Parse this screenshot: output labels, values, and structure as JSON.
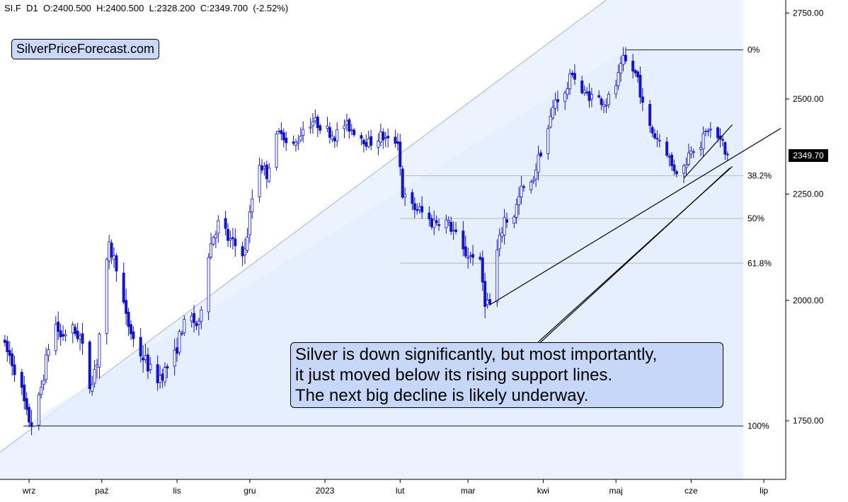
{
  "header": {
    "symbol": "SI.F",
    "timeframe": "D1",
    "open": "O:2400.500",
    "high": "H:2400.500",
    "low": "L:2328.200",
    "close": "C:2349.700",
    "change": "(-2.52%)"
  },
  "logo_text": "SilverPriceForecast.com",
  "annotation": {
    "line1": "Silver is down significantly, but most importantly,",
    "line2": "it just moved below its rising support lines.",
    "line3": "The next big decline is likely underway."
  },
  "last_price_label": "2349.70",
  "colors": {
    "candle": "#1414c8",
    "fib_fill": "#e3eefc",
    "triangle_fill": "#eaf3ff",
    "fib_line": "#b8b8b8"
  },
  "chart_data": {
    "type": "candlestick",
    "title": "",
    "xlabel": "",
    "ylabel": "",
    "y_scale": "log",
    "ylim": [
      1640,
      2790
    ],
    "yticks": [
      {
        "label": "1750.00",
        "value": 1750
      },
      {
        "label": "2000.00",
        "value": 2000
      },
      {
        "label": "2250.00",
        "value": 2250
      },
      {
        "label": "2500.00",
        "value": 2500
      },
      {
        "label": "2750.00",
        "value": 2750
      }
    ],
    "xticks": [
      {
        "label": "wrz",
        "date": "2022-09-01"
      },
      {
        "label": "paź",
        "date": "2022-10-01"
      },
      {
        "label": "lis",
        "date": "2022-11-01"
      },
      {
        "label": "gru",
        "date": "2022-12-01"
      },
      {
        "label": "2023",
        "date": "2023-01-01"
      },
      {
        "label": "lut",
        "date": "2023-02-01"
      },
      {
        "label": "mar",
        "date": "2023-03-01"
      },
      {
        "label": "kwi",
        "date": "2023-04-01"
      },
      {
        "label": "maj",
        "date": "2023-05-01"
      },
      {
        "label": "cze",
        "date": "2023-06-01"
      },
      {
        "label": "lip",
        "date": "2023-07-01"
      }
    ],
    "xlim": [
      "2022-08-20",
      "2023-07-10"
    ],
    "fibonacci": {
      "high": 2640,
      "low": 1740,
      "levels": [
        {
          "label": "0%",
          "value": 2640
        },
        {
          "label": "38.2%",
          "value": 2296
        },
        {
          "label": "50%",
          "value": 2190
        },
        {
          "label": "61.8%",
          "value": 2084
        },
        {
          "label": "100%",
          "value": 1740
        }
      ]
    },
    "price_path": [
      [
        "2022-08-20",
        1920
      ],
      [
        "2022-08-25",
        1880
      ],
      [
        "2022-08-29",
        1830
      ],
      [
        "2022-09-01",
        1760
      ],
      [
        "2022-09-03",
        1745
      ],
      [
        "2022-09-06",
        1790
      ],
      [
        "2022-09-09",
        1870
      ],
      [
        "2022-09-12",
        1960
      ],
      [
        "2022-09-15",
        1920
      ],
      [
        "2022-09-19",
        1940
      ],
      [
        "2022-09-23",
        1920
      ],
      [
        "2022-09-27",
        1820
      ],
      [
        "2022-09-30",
        1870
      ],
      [
        "2022-10-03",
        2040
      ],
      [
        "2022-10-05",
        2120
      ],
      [
        "2022-10-08",
        2080
      ],
      [
        "2022-10-12",
        1960
      ],
      [
        "2022-10-16",
        1900
      ],
      [
        "2022-10-20",
        1870
      ],
      [
        "2022-10-24",
        1830
      ],
      [
        "2022-10-28",
        1850
      ],
      [
        "2022-11-01",
        1880
      ],
      [
        "2022-11-04",
        1940
      ],
      [
        "2022-11-08",
        1960
      ],
      [
        "2022-11-11",
        1940
      ],
      [
        "2022-11-14",
        2090
      ],
      [
        "2022-11-17",
        2150
      ],
      [
        "2022-11-20",
        2190
      ],
      [
        "2022-11-23",
        2140
      ],
      [
        "2022-11-27",
        2120
      ],
      [
        "2022-11-30",
        2110
      ],
      [
        "2022-12-03",
        2240
      ],
      [
        "2022-12-06",
        2330
      ],
      [
        "2022-12-09",
        2300
      ],
      [
        "2022-12-12",
        2380
      ],
      [
        "2022-12-15",
        2420
      ],
      [
        "2022-12-18",
        2360
      ],
      [
        "2022-12-21",
        2380
      ],
      [
        "2022-12-24",
        2420
      ],
      [
        "2022-12-28",
        2440
      ],
      [
        "2023-01-02",
        2420
      ],
      [
        "2023-01-06",
        2400
      ],
      [
        "2023-01-10",
        2430
      ],
      [
        "2023-01-15",
        2410
      ],
      [
        "2023-01-20",
        2380
      ],
      [
        "2023-01-25",
        2400
      ],
      [
        "2023-01-29",
        2380
      ],
      [
        "2023-02-01",
        2390
      ],
      [
        "2023-02-03",
        2250
      ],
      [
        "2023-02-06",
        2220
      ],
      [
        "2023-02-10",
        2210
      ],
      [
        "2023-02-15",
        2180
      ],
      [
        "2023-02-20",
        2190
      ],
      [
        "2023-02-24",
        2160
      ],
      [
        "2023-02-28",
        2110
      ],
      [
        "2023-03-03",
        2100
      ],
      [
        "2023-03-06",
        2120
      ],
      [
        "2023-03-09",
        2000
      ],
      [
        "2023-03-11",
        1990
      ],
      [
        "2023-03-14",
        2110
      ],
      [
        "2023-03-17",
        2190
      ],
      [
        "2023-03-20",
        2180
      ],
      [
        "2023-03-24",
        2260
      ],
      [
        "2023-03-28",
        2270
      ],
      [
        "2023-03-31",
        2340
      ],
      [
        "2023-04-04",
        2420
      ],
      [
        "2023-04-07",
        2500
      ],
      [
        "2023-04-11",
        2510
      ],
      [
        "2023-04-14",
        2580
      ],
      [
        "2023-04-17",
        2520
      ],
      [
        "2023-04-21",
        2510
      ],
      [
        "2023-04-25",
        2500
      ],
      [
        "2023-04-28",
        2490
      ],
      [
        "2023-05-02",
        2540
      ],
      [
        "2023-05-05",
        2610
      ],
      [
        "2023-05-08",
        2590
      ],
      [
        "2023-05-11",
        2560
      ],
      [
        "2023-05-14",
        2440
      ],
      [
        "2023-05-18",
        2400
      ],
      [
        "2023-05-22",
        2380
      ],
      [
        "2023-05-25",
        2320
      ],
      [
        "2023-05-29",
        2300
      ],
      [
        "2023-06-02",
        2370
      ],
      [
        "2023-06-06",
        2380
      ],
      [
        "2023-06-09",
        2420
      ],
      [
        "2023-06-12",
        2400
      ],
      [
        "2023-06-15",
        2380
      ],
      [
        "2023-06-16",
        2350
      ]
    ],
    "last_price": 2349.7,
    "support_lines": [
      {
        "from": [
          "2023-03-10",
          1990
        ],
        "to": [
          "2023-07-08",
          2420
        ]
      },
      {
        "from": [
          "2023-05-29",
          2290
        ],
        "to": [
          "2023-06-18",
          2430
        ]
      },
      {
        "from": [
          "2023-03-30",
          1910
        ],
        "to": [
          "2023-06-18",
          2320
        ]
      },
      {
        "from": [
          "2023-03-30",
          1905
        ],
        "to": [
          "2023-06-17",
          2316
        ]
      }
    ],
    "trend_channel": {
      "from": [
        "2022-08-20",
        1690
      ],
      "to": [
        "2023-04-27",
        2790
      ]
    }
  }
}
